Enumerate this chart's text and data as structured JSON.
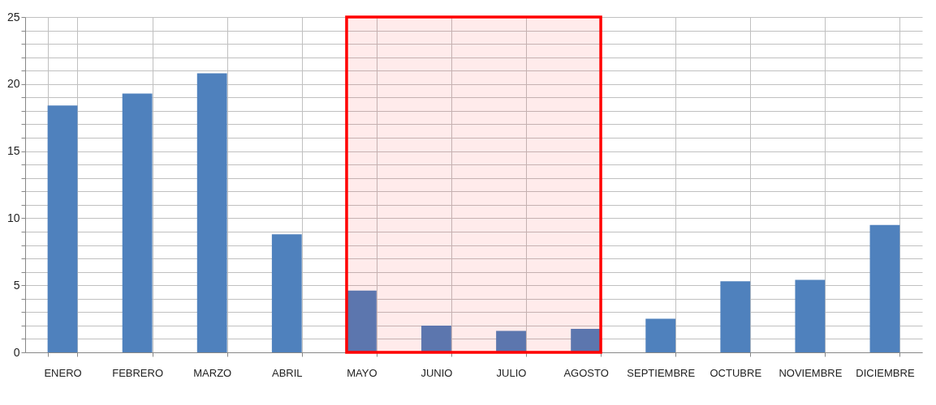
{
  "chart_data": {
    "type": "bar",
    "categories": [
      "ENERO",
      "FEBRERO",
      "MARZO",
      "ABRIL",
      "MAYO",
      "JUNIO",
      "JULIO",
      "AGOSTO",
      "SEPTIEMBRE",
      "OCTUBRE",
      "NOVIEMBRE",
      "DICIEMBRE"
    ],
    "values": [
      18.4,
      19.3,
      20.8,
      8.8,
      4.6,
      2.0,
      1.6,
      1.75,
      2.5,
      5.3,
      5.4,
      9.5
    ],
    "color": "#4f81bd",
    "ylim": [
      0,
      25
    ],
    "yticks": [
      0,
      5,
      10,
      15,
      20,
      25
    ],
    "grid": true,
    "bands": [
      {
        "axis": "x",
        "from": "MAYO",
        "to": "AGOSTO",
        "color": "#ff0000"
      }
    ]
  }
}
